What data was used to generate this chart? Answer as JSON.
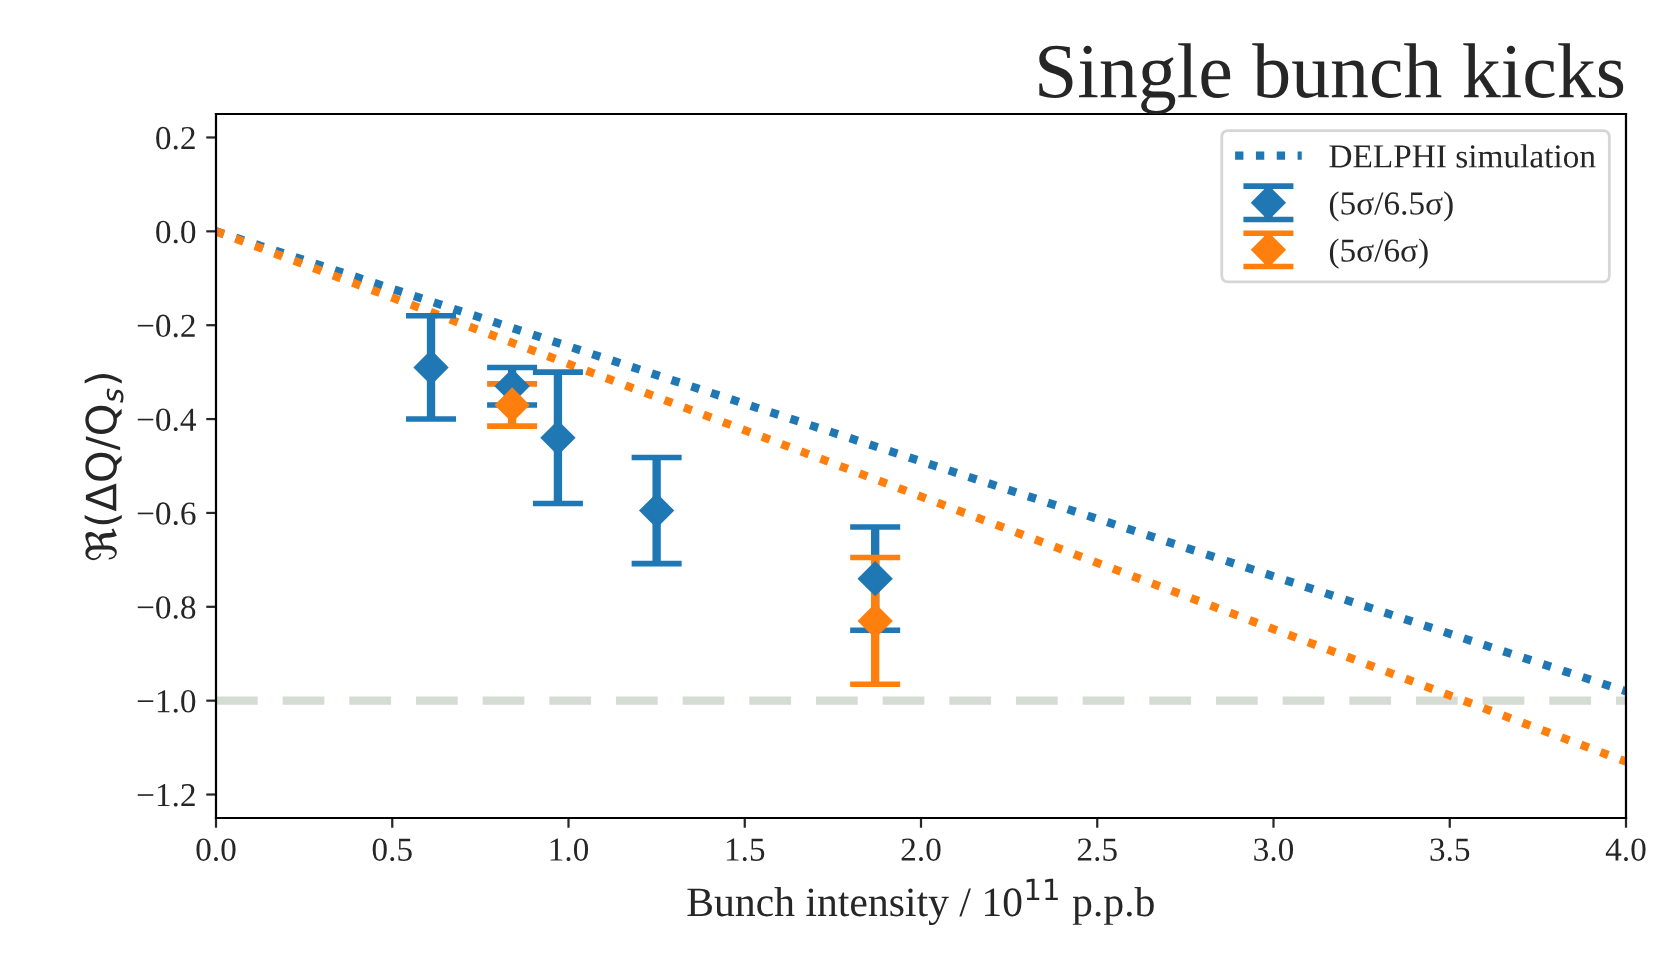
{
  "chart_data": {
    "type": "scatter",
    "title": "Single bunch kicks",
    "xlabel": "Bunch intensity / 10$^{11}$ p.p.b",
    "ylabel": "ℜ(ΔQ/Q$_{s}$)",
    "xlim": [
      0,
      4
    ],
    "xticks": [
      {
        "value": 0,
        "label": "0.0"
      },
      {
        "value": 0.5,
        "label": "0.5"
      },
      {
        "value": 1,
        "label": "1.0"
      },
      {
        "value": 1.5,
        "label": "1.5"
      },
      {
        "value": 2,
        "label": "2.0"
      },
      {
        "value": 2.5,
        "label": "2.5"
      },
      {
        "value": 3,
        "label": "3.0"
      },
      {
        "value": 3.5,
        "label": "3.5"
      },
      {
        "value": 4,
        "label": "4.0"
      }
    ],
    "ylim": [
      -1.25,
      0.25
    ],
    "yticks": [
      {
        "value": -1.2,
        "label": "−1.2"
      },
      {
        "value": -1,
        "label": "−1.0"
      },
      {
        "value": -0.8,
        "label": "−0.8"
      },
      {
        "value": -0.6,
        "label": "−0.6"
      },
      {
        "value": -0.4,
        "label": "−0.4"
      },
      {
        "value": -0.2,
        "label": "−0.2"
      },
      {
        "value": 0,
        "label": "0.0"
      },
      {
        "value": 0.2,
        "label": "0.2"
      }
    ],
    "grid": false,
    "legend": "top right",
    "series": [
      {
        "name": "DELPHI simulation",
        "type": "line",
        "line_style": "dotted",
        "marker": "none",
        "color": "#1f77b4",
        "x": [
          0,
          4
        ],
        "values": [
          0,
          -0.98
        ]
      },
      {
        "type": "line",
        "line_style": "dotted",
        "marker": "none",
        "color": "#ff7f0e",
        "x": [
          0,
          4
        ],
        "values": [
          0,
          -1.13
        ]
      },
      {
        "name": "(5σ/6.5σ)",
        "marker": "diamond",
        "color": "#1f77b4",
        "x": [
          0.61,
          0.84,
          0.97,
          1.25,
          1.87
        ],
        "values": [
          -0.29,
          -0.33,
          -0.44,
          -0.595,
          -0.74
        ],
        "errors": [
          0.11,
          0.04,
          0.14,
          0.113,
          0.11
        ]
      },
      {
        "name": "(5σ/6σ)",
        "marker": "diamond",
        "color": "#ff7f0e",
        "x": [
          0.84,
          1.87
        ],
        "values": [
          -0.37,
          -0.83
        ],
        "errors": [
          0.045,
          0.135
        ]
      }
    ],
    "ref_lines": [
      {
        "axis": "y",
        "value": -1,
        "color": "#d5dcd4",
        "line_style": "dashed"
      }
    ]
  }
}
